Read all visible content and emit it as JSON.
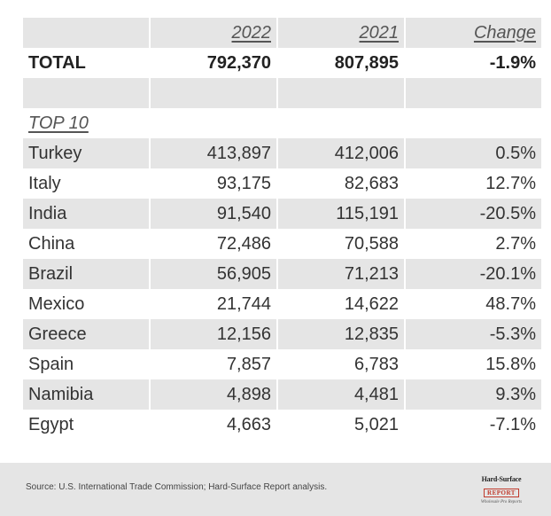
{
  "header": {
    "col1": "2022",
    "col2": "2021",
    "col3": "Change"
  },
  "total": {
    "label": "TOTAL",
    "v2022": "792,370",
    "v2021": "807,895",
    "change": "-1.9%"
  },
  "section_label": "TOP 10",
  "rows": [
    {
      "country": "Turkey",
      "v2022": "413,897",
      "v2021": "412,006",
      "change": "0.5%"
    },
    {
      "country": "Italy",
      "v2022": "93,175",
      "v2021": "82,683",
      "change": "12.7%"
    },
    {
      "country": "India",
      "v2022": "91,540",
      "v2021": "115,191",
      "change": "-20.5%"
    },
    {
      "country": "China",
      "v2022": "72,486",
      "v2021": "70,588",
      "change": "2.7%"
    },
    {
      "country": "Brazil",
      "v2022": "56,905",
      "v2021": "71,213",
      "change": "-20.1%"
    },
    {
      "country": "Mexico",
      "v2022": "21,744",
      "v2021": "14,622",
      "change": "48.7%"
    },
    {
      "country": "Greece",
      "v2022": "12,156",
      "v2021": "12,835",
      "change": "-5.3%"
    },
    {
      "country": "Spain",
      "v2022": "7,857",
      "v2021": "6,783",
      "change": "15.8%"
    },
    {
      "country": "Namibia",
      "v2022": "4,898",
      "v2021": "4,481",
      "change": "9.3%"
    },
    {
      "country": "Egypt",
      "v2022": "4,663",
      "v2021": "5,021",
      "change": "-7.1%"
    }
  ],
  "footer": {
    "source": "Source: U.S. International Trade Commission; Hard-Surface Report analysis.",
    "logo_line1": "Hard-Surface",
    "logo_line2": "REPORT",
    "logo_line3": "Wholesale Pro Reports"
  }
}
